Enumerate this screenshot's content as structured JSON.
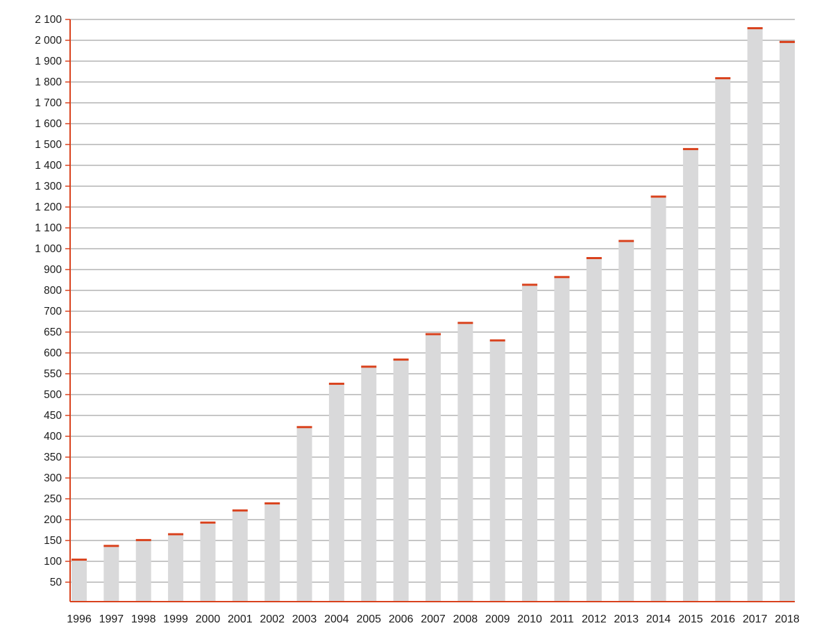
{
  "chart_data": {
    "type": "bar",
    "title": "",
    "xlabel": "",
    "ylabel": "",
    "grid": true,
    "legend": "none",
    "y_scale": "piecewise",
    "y_ticks": [
      {
        "value": 50,
        "label": "50"
      },
      {
        "value": 100,
        "label": "100"
      },
      {
        "value": 150,
        "label": "150"
      },
      {
        "value": 200,
        "label": "200"
      },
      {
        "value": 250,
        "label": "250"
      },
      {
        "value": 300,
        "label": "300"
      },
      {
        "value": 350,
        "label": "350"
      },
      {
        "value": 400,
        "label": "400"
      },
      {
        "value": 450,
        "label": "450"
      },
      {
        "value": 500,
        "label": "500"
      },
      {
        "value": 550,
        "label": "550"
      },
      {
        "value": 600,
        "label": "600"
      },
      {
        "value": 650,
        "label": "650"
      },
      {
        "value": 700,
        "label": "700"
      },
      {
        "value": 800,
        "label": "800"
      },
      {
        "value": 900,
        "label": "900"
      },
      {
        "value": 1000,
        "label": "1 000"
      },
      {
        "value": 1100,
        "label": "1 100"
      },
      {
        "value": 1200,
        "label": "1 200"
      },
      {
        "value": 1300,
        "label": "1 300"
      },
      {
        "value": 1400,
        "label": "1 400"
      },
      {
        "value": 1500,
        "label": "1 500"
      },
      {
        "value": 1600,
        "label": "1 600"
      },
      {
        "value": 1700,
        "label": "1 700"
      },
      {
        "value": 1800,
        "label": "1 800"
      },
      {
        "value": 1900,
        "label": "1 900"
      },
      {
        "value": 2000,
        "label": "2 000"
      },
      {
        "value": 2100,
        "label": "2 100"
      }
    ],
    "categories": [
      "1996",
      "1997",
      "1998",
      "1999",
      "2000",
      "2001",
      "2002",
      "2003",
      "2004",
      "2005",
      "2006",
      "2007",
      "2008",
      "2009",
      "2010",
      "2011",
      "2012",
      "2013",
      "2014",
      "2015",
      "2016",
      "2017",
      "2018"
    ],
    "values": [
      104,
      137,
      151,
      165,
      193,
      222,
      239,
      422,
      526,
      567,
      584,
      645,
      672,
      630,
      827,
      864,
      955,
      1037,
      1250,
      1478,
      1818,
      2058,
      1992
    ],
    "colors": {
      "bar": "#d9d9da",
      "bar_cap": "#d9411c",
      "axis": "#d9411c",
      "grid": "#8c8c8c",
      "text": "#1a1a1a"
    }
  }
}
